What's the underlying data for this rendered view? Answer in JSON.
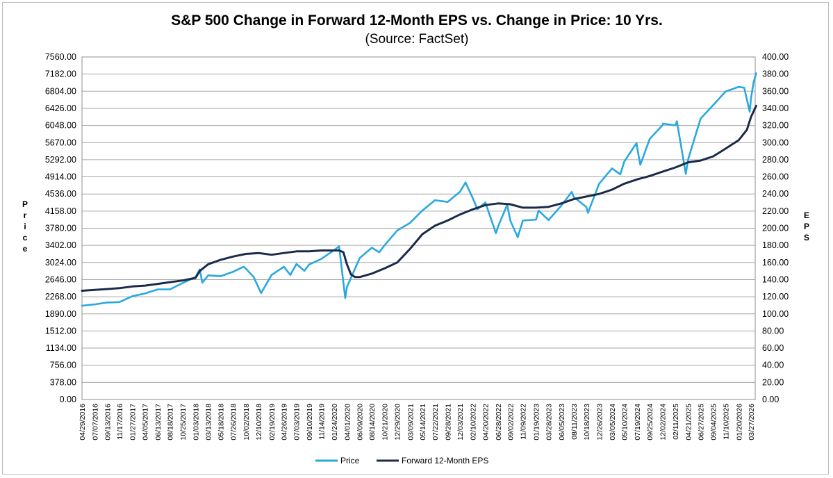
{
  "chart_data": {
    "type": "line",
    "title": "S&P 500 Change in Forward 12-Month EPS vs. Change in Price: 10 Yrs.",
    "subtitle": "(Source: FactSet)",
    "ylabel_left": "Price",
    "ylabel_right": "EPS",
    "ylim_left": [
      0,
      7560
    ],
    "ylim_right": [
      0,
      400
    ],
    "y_ticks_left": [
      "7560.00",
      "7182.00",
      "6804.00",
      "6426.00",
      "6048.00",
      "5670.00",
      "5292.00",
      "4914.00",
      "4536.00",
      "4158.00",
      "3780.00",
      "3402.00",
      "3024.00",
      "2646.00",
      "2268.00",
      "1890.00",
      "1512.00",
      "1134.00",
      "756.00",
      "378.00",
      "0.00"
    ],
    "y_ticks_right": [
      "400.00",
      "380.00",
      "360.00",
      "340.00",
      "320.00",
      "300.00",
      "280.00",
      "260.00",
      "240.00",
      "220.00",
      "200.00",
      "180.00",
      "160.00",
      "140.00",
      "120.00",
      "100.00",
      "80.00",
      "60.00",
      "40.00",
      "20.00",
      "0.00"
    ],
    "x_ticks": [
      "04/29/2016",
      "07/07/2016",
      "09/13/2016",
      "11/17/2016",
      "01/27/2017",
      "04/05/2017",
      "06/13/2017",
      "08/18/2017",
      "10/25/2017",
      "01/03/2018",
      "03/13/2018",
      "05/18/2018",
      "07/26/2018",
      "10/02/2018",
      "12/10/2018",
      "02/19/2019",
      "04/26/2019",
      "07/03/2019",
      "09/10/2019",
      "11/14/2019",
      "01/24/2020",
      "04/01/2020",
      "06/09/2020",
      "08/14/2020",
      "10/21/2020",
      "12/29/2020",
      "03/09/2021",
      "05/14/2021",
      "07/22/2021",
      "09/28/2021",
      "12/03/2021",
      "02/10/2022",
      "04/20/2022",
      "06/28/2022",
      "09/02/2022",
      "11/09/2022",
      "01/19/2023",
      "03/28/2023",
      "06/05/2023",
      "08/11/2023",
      "10/18/2023",
      "12/26/2023",
      "03/05/2024",
      "05/10/2024",
      "07/19/2024",
      "09/25/2024",
      "12/02/2024",
      "02/11/2025",
      "04/21/2025",
      "06/27/2025",
      "09/04/2025",
      "11/10/2025",
      "01/20/2026",
      "03/27/2026"
    ],
    "grid": true,
    "legend_position": "bottom",
    "series": [
      {
        "name": "Price",
        "axis": "left",
        "color": "#29a8e0",
        "x": [
          "04/29/2016",
          "07/07/2016",
          "09/13/2016",
          "11/17/2016",
          "01/27/2017",
          "04/05/2017",
          "06/13/2017",
          "08/18/2017",
          "10/25/2017",
          "01/03/2018",
          "01/26/2018",
          "02/09/2018",
          "03/13/2018",
          "05/18/2018",
          "07/26/2018",
          "09/20/2018",
          "10/02/2018",
          "11/14/2018",
          "12/24/2018",
          "02/19/2019",
          "04/26/2019",
          "05/31/2019",
          "07/03/2019",
          "08/15/2019",
          "09/10/2019",
          "11/14/2019",
          "01/24/2020",
          "02/19/2020",
          "03/23/2020",
          "04/01/2020",
          "06/09/2020",
          "08/14/2020",
          "09/23/2020",
          "10/21/2020",
          "12/29/2020",
          "03/09/2021",
          "05/14/2021",
          "07/22/2021",
          "09/28/2021",
          "12/03/2021",
          "01/03/2022",
          "02/10/2022",
          "03/08/2022",
          "04/20/2022",
          "06/16/2022",
          "06/28/2022",
          "08/16/2022",
          "09/02/2022",
          "10/12/2022",
          "11/09/2022",
          "01/19/2023",
          "02/02/2023",
          "03/28/2023",
          "06/05/2023",
          "07/31/2023",
          "08/11/2023",
          "10/18/2023",
          "10/27/2023",
          "12/26/2023",
          "03/05/2024",
          "04/19/2024",
          "05/10/2024",
          "07/16/2024",
          "07/19/2024",
          "08/05/2024",
          "09/25/2024",
          "12/02/2024",
          "12/06/2024",
          "02/11/2025",
          "02/19/2025",
          "04/08/2025",
          "04/21/2025",
          "06/27/2025",
          "09/04/2025",
          "11/10/2025",
          "01/20/2026",
          "02/18/2026",
          "03/05/2026",
          "03/20/2026",
          "03/27/2026",
          "04/10/2026",
          "04/24/2026"
        ],
        "values": [
          2070,
          2100,
          2140,
          2150,
          2280,
          2340,
          2430,
          2430,
          2570,
          2700,
          2870,
          2580,
          2740,
          2720,
          2820,
          2930,
          2890,
          2700,
          2350,
          2750,
          2930,
          2750,
          2990,
          2840,
          2980,
          3100,
          3300,
          3380,
          2240,
          2480,
          3120,
          3350,
          3250,
          3400,
          3730,
          3900,
          4170,
          4400,
          4360,
          4580,
          4790,
          4450,
          4200,
          4350,
          3670,
          3820,
          4300,
          3950,
          3580,
          3950,
          3970,
          4170,
          3960,
          4280,
          4580,
          4470,
          4250,
          4120,
          4760,
          5100,
          4970,
          5250,
          5660,
          5560,
          5180,
          5750,
          6050,
          6090,
          6050,
          6140,
          4980,
          5300,
          6200,
          6500,
          6800,
          6900,
          6880,
          6620,
          6350,
          6650,
          7000,
          7200
        ]
      },
      {
        "name": "Forward 12-Month EPS",
        "axis": "right",
        "color": "#1b2a4a",
        "x": [
          "04/29/2016",
          "07/07/2016",
          "09/13/2016",
          "11/17/2016",
          "01/27/2017",
          "04/05/2017",
          "06/13/2017",
          "08/18/2017",
          "10/25/2017",
          "01/03/2018",
          "01/26/2018",
          "03/13/2018",
          "05/18/2018",
          "07/26/2018",
          "10/02/2018",
          "12/10/2018",
          "02/19/2019",
          "04/26/2019",
          "07/03/2019",
          "09/10/2019",
          "11/14/2019",
          "01/24/2020",
          "02/19/2020",
          "03/13/2020",
          "04/01/2020",
          "04/23/2020",
          "05/15/2020",
          "06/09/2020",
          "08/14/2020",
          "10/21/2020",
          "12/29/2020",
          "03/09/2021",
          "05/14/2021",
          "07/22/2021",
          "09/28/2021",
          "12/03/2021",
          "02/10/2022",
          "04/20/2022",
          "06/28/2022",
          "09/02/2022",
          "11/09/2022",
          "01/19/2023",
          "03/28/2023",
          "06/05/2023",
          "08/11/2023",
          "10/18/2023",
          "12/26/2023",
          "03/05/2024",
          "05/10/2024",
          "07/19/2024",
          "09/25/2024",
          "12/02/2024",
          "02/11/2025",
          "04/21/2025",
          "06/27/2025",
          "09/04/2025",
          "11/10/2025",
          "01/20/2026",
          "03/05/2026",
          "03/27/2026",
          "04/24/2026"
        ],
        "values": [
          127,
          128,
          129,
          130,
          132,
          133,
          135,
          137,
          139,
          142,
          150,
          158,
          163,
          167,
          170,
          171,
          169,
          171,
          173,
          173,
          174,
          174,
          174,
          172,
          158,
          146,
          143,
          143,
          147,
          153,
          160,
          176,
          193,
          203,
          209,
          216,
          222,
          227,
          229,
          228,
          224,
          224,
          225,
          229,
          234,
          237,
          240,
          245,
          252,
          257,
          261,
          266,
          271,
          277,
          279,
          284,
          293,
          303,
          315,
          330,
          343
        ]
      }
    ]
  }
}
